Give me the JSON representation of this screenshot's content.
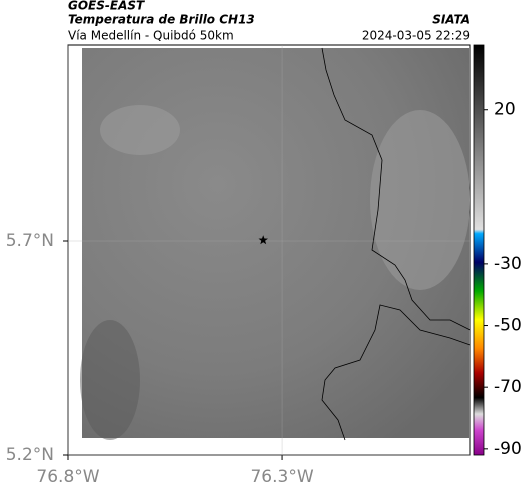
{
  "header": {
    "source": "GOES-EAST",
    "title": "Temperatura de Brillo CH13",
    "subtitle": "Vía Medellín - Quibdó 50km",
    "credit": "SIATA",
    "timestamp": "2024-03-05 22:29"
  },
  "map": {
    "xlim": [
      -76.8,
      -75.861
    ],
    "ylim": [
      5.2,
      6.158
    ],
    "xticks": [
      {
        "value": -76.8,
        "label": "76.8°W"
      },
      {
        "value": -76.3,
        "label": "76.3°W"
      }
    ],
    "yticks": [
      {
        "value": 5.7,
        "label": "5.7°N"
      },
      {
        "value": 5.2,
        "label": "5.2°N"
      }
    ],
    "grid": true,
    "marker": {
      "lon": -76.344,
      "lat": 5.702
    }
  },
  "colorbar": {
    "lim": [
      -92,
      41
    ],
    "ticks": [
      20,
      -30,
      -50,
      -70,
      -90
    ]
  }
}
